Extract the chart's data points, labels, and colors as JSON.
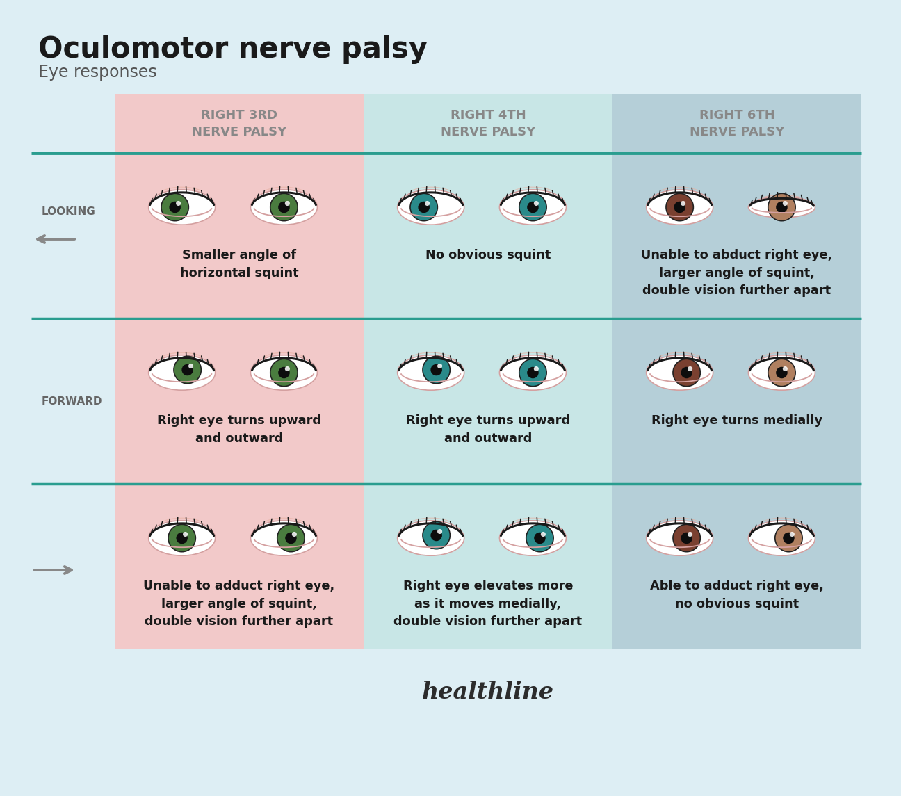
{
  "title": "Oculomotor nerve palsy",
  "subtitle": "Eye responses",
  "background_color": "#ddeef4",
  "col1_bg": "#f2c9c9",
  "col2_bg": "#c8e6e6",
  "col3_bg": "#b5cfd8",
  "header_text_color": "#888888",
  "divider_color": "#2a9d8f",
  "col_headers": [
    [
      "RIGHT 3RD",
      "NERVE PALSY"
    ],
    [
      "RIGHT 4TH",
      "NERVE PALSY"
    ],
    [
      "RIGHT 6TH",
      "NERVE PALSY"
    ]
  ],
  "cell_texts": [
    [
      "Smaller angle of\nhorizontal squint",
      "No obvious squint",
      "Unable to abduct right eye,\nlarger angle of squint,\ndouble vision further apart"
    ],
    [
      "Right eye turns upward\nand outward",
      "Right eye turns upward\nand outward",
      "Right eye turns medially"
    ],
    [
      "Unable to adduct right eye,\nlarger angle of squint,\ndouble vision further apart",
      "Right eye elevates more\nas it moves medially,\ndouble vision further apart",
      "Able to adduct right eye,\nno obvious squint"
    ]
  ],
  "healthline_text": "healthline",
  "healthline_color": "#2c2c2c"
}
